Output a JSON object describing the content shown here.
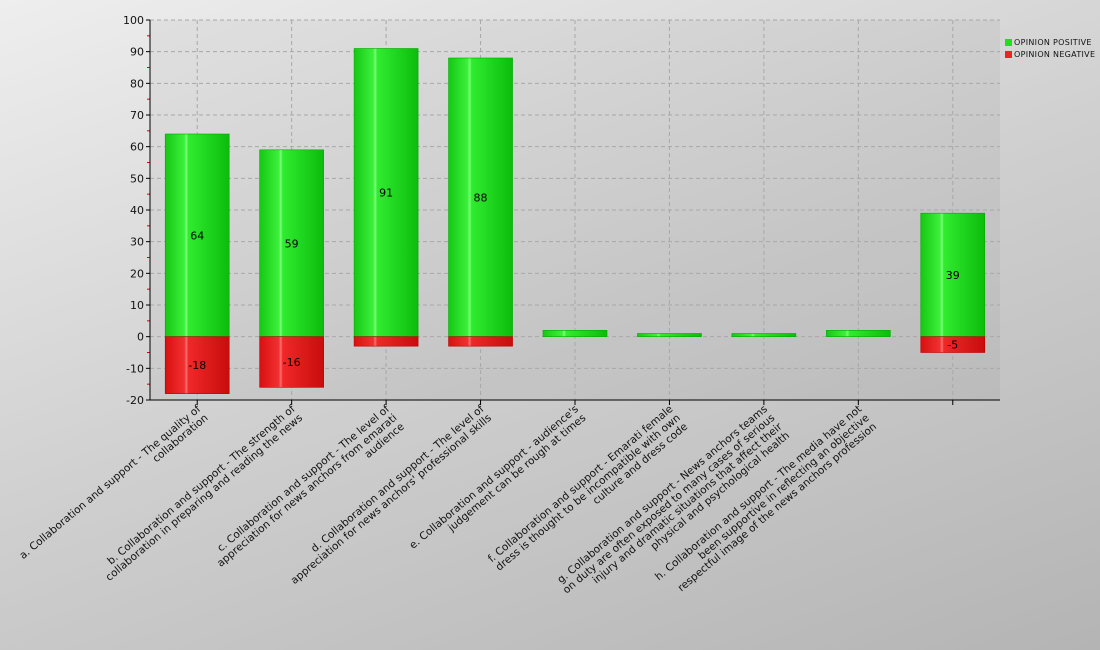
{
  "chart_data": {
    "type": "bar",
    "title": "",
    "xlabel": "",
    "ylabel": "",
    "ylim": [
      -20,
      100
    ],
    "yticks": [
      -20,
      -10,
      0,
      10,
      20,
      30,
      40,
      50,
      60,
      70,
      80,
      90,
      100
    ],
    "grid": true,
    "legend_position": "top-right",
    "categories": [
      [
        "a. Collaboration and support - The quality of",
        "collaboration"
      ],
      [
        "b. Collaboration and support - The strength of",
        "collaboration in preparing and reading the news"
      ],
      [
        "c. Collaboration and support - The level of",
        "appreciation for news anchors from emarati",
        "audience"
      ],
      [
        "d. Collaboration and support - The level of",
        "appreciation for news anchors' professional skills"
      ],
      [
        "e. Collaboration and support - audience's",
        "judgement can be rough at times"
      ],
      [
        "f. Collaboration and support - Emarati female",
        "dress is thought to be incompatible with own",
        "culture and dress code"
      ],
      [
        "g. Collaboration and support - News anchors teams",
        "on duty are often exposed to many cases of serious",
        "injury and dramatic situations that affect their",
        "physical and psychological health"
      ],
      [
        "h. Collaboration and support - The media have not",
        "been supportive in reflecting an objective",
        "respectful image of the news anchors profession"
      ],
      [
        ""
      ]
    ],
    "series": [
      {
        "name": "OPINION POSITIVE",
        "color": "#22dd22",
        "values": [
          64,
          59,
          91,
          88,
          2,
          1,
          1,
          2,
          39
        ],
        "labels": [
          "64",
          "59",
          "91",
          "88",
          "",
          "",
          "",
          "",
          "39"
        ]
      },
      {
        "name": "OPINION NEGATIVE",
        "color": "#ee2222",
        "values": [
          -18,
          -16,
          -3,
          -3,
          0,
          0,
          0,
          0,
          -5
        ],
        "labels": [
          "-18",
          "-16",
          "",
          "",
          "",
          "",
          "",
          "",
          "-5"
        ]
      }
    ]
  }
}
